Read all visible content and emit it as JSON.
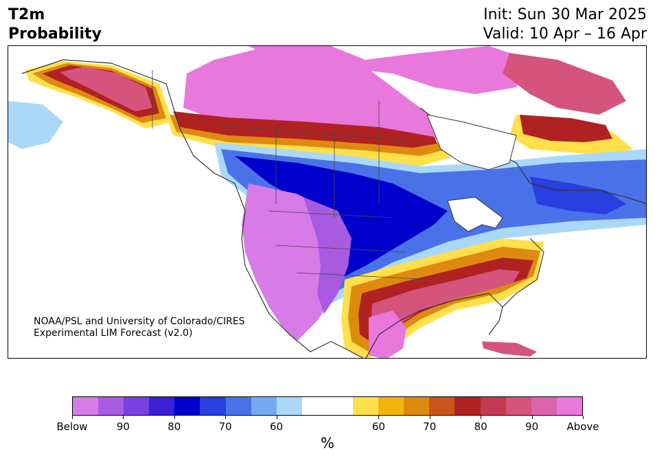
{
  "title": {
    "line1": "T2m",
    "line2": "Probability"
  },
  "info": {
    "init": "Init: Sun 30 Mar 2025",
    "valid": "Valid: 10 Apr – 16 Apr"
  },
  "credit": {
    "line1": "NOAA/PSL and University of Colorado/CIRES",
    "line2": "Experimental LIM Forecast (v2.0)"
  },
  "colorbar": {
    "colors": [
      "#d77be8",
      "#a85be0",
      "#7a3fe0",
      "#3b1fd6",
      "#0000cc",
      "#2a3fe0",
      "#4a72e8",
      "#74aaf0",
      "#aad8f8",
      "#ffffff",
      "#ffffff",
      "#ffe04a",
      "#f2b40a",
      "#de8a10",
      "#c8561a",
      "#b02222",
      "#c43a50",
      "#d4547e",
      "#dc64ae",
      "#e878dc"
    ],
    "labels": [
      "Below",
      "90",
      "80",
      "70",
      "60",
      "60",
      "70",
      "80",
      "90",
      "Above"
    ],
    "unit": "%"
  },
  "map_layers": {
    "below_core": "#0000cc",
    "below_mid": "#4a72e8",
    "below_light": "#aad8f8",
    "below_purple": "#d77be8",
    "above_yellow": "#ffe04a",
    "above_orange": "#de8a10",
    "above_red": "#b02222",
    "above_pink": "#d4547e",
    "above_magenta": "#e878dc"
  }
}
